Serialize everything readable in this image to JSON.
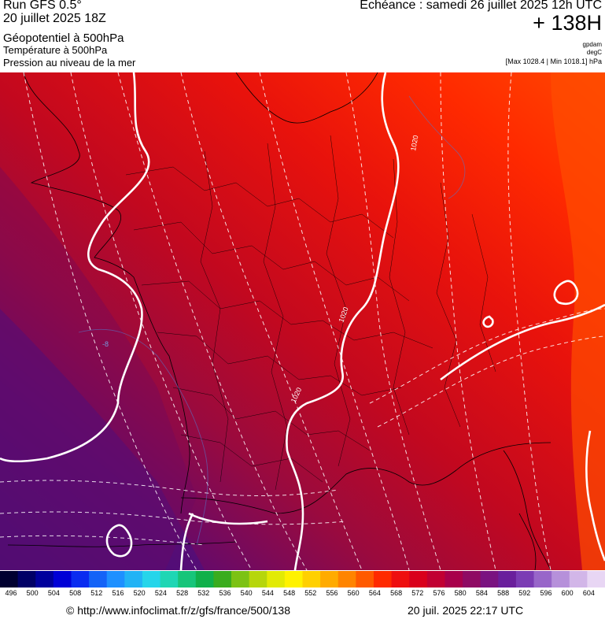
{
  "header": {
    "run": "Run GFS 0.5°",
    "run_date": "20 juillet 2025 18Z",
    "param_main": "Géopotentiel à 500hPa",
    "param_temp": "Température à 500hPa",
    "param_pressure": "Pression au niveau de la mer",
    "echeance": "Echéance : samedi 26 juillet 2025 12h UTC",
    "hours": "+ 138H",
    "unit_geo": "gpdam",
    "unit_temp": "degC",
    "maxmin": "[Max 1028.4 | Min 1018.1] hPa"
  },
  "map": {
    "isobar_labels": [
      "1020",
      "1020",
      "1020"
    ],
    "temp_label": "-8"
  },
  "legend": {
    "values": [
      "496",
      "500",
      "504",
      "508",
      "512",
      "516",
      "520",
      "524",
      "528",
      "532",
      "536",
      "540",
      "544",
      "548",
      "552",
      "556",
      "560",
      "564",
      "568",
      "572",
      "576",
      "580",
      "584",
      "588",
      "592",
      "596",
      "600",
      "604"
    ],
    "colors": [
      "#000030",
      "#000066",
      "#00009c",
      "#0000d6",
      "#0a2cf0",
      "#1463f7",
      "#1e90ff",
      "#22b3f5",
      "#26d5ea",
      "#1fd6b4",
      "#17c57a",
      "#10b04a",
      "#3aac1e",
      "#7cc214",
      "#b6d60c",
      "#e2ea05",
      "#fff200",
      "#ffd000",
      "#ffab00",
      "#ff8400",
      "#ff5a00",
      "#ff2a00",
      "#ee0f0f",
      "#d9001c",
      "#c10032",
      "#a8004b",
      "#8f0a63",
      "#7a1380",
      "#6a1f9c",
      "#7b3cb4",
      "#9866c9",
      "#b690da",
      "#d2b6e8",
      "#e8d6f4"
    ]
  },
  "footer": {
    "copyright": "© http://www.infoclimat.fr/z/gfs/france/500/138",
    "timestamp": "20 juil. 2025 22:17 UTC"
  }
}
